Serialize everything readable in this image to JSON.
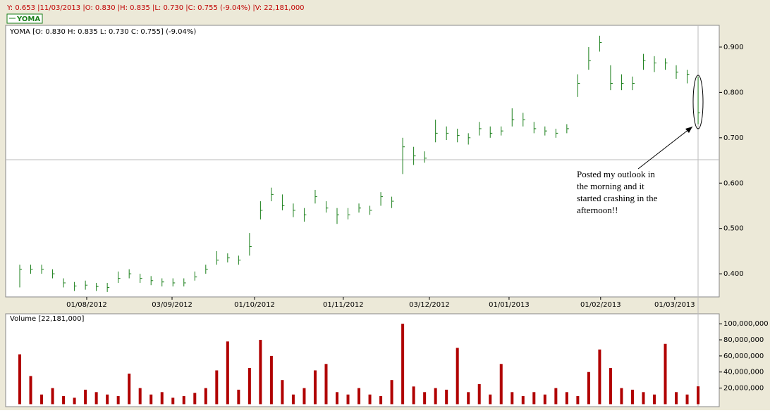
{
  "chart_data": [
    {
      "type": "ohlc",
      "status_line": "Y: 0.653 |11/03/2013 |O: 0.830 |H: 0.835 |L: 0.730 |C: 0.755 (-9.04%) |V: 22,181,000",
      "legend": "YOMA",
      "title": "YOMA [O: 0.830  H: 0.835  L: 0.730  C: 0.755] (-9.04%)",
      "annotation": [
        "Posted my outlook in",
        "the morning and it",
        "started crashing in the",
        "afternoon!!"
      ],
      "color": "#1a7f1a",
      "xlim": [
        -1.29,
        63.93
      ],
      "xticks": [
        {
          "value": 6.12,
          "label": "01/08/2012"
        },
        {
          "value": 13.92,
          "label": "03/09/2012"
        },
        {
          "value": 21.46,
          "label": "01/10/2012"
        },
        {
          "value": 29.57,
          "label": "01/11/2012"
        },
        {
          "value": 37.44,
          "label": "03/12/2012"
        },
        {
          "value": 44.72,
          "label": "01/01/2013"
        },
        {
          "value": 53.09,
          "label": "01/02/2013"
        },
        {
          "value": 59.86,
          "label": "01/03/2013"
        }
      ],
      "ylim": [
        0.349,
        0.948
      ],
      "yticks": [
        {
          "value": 0.4,
          "label": "0.400"
        },
        {
          "value": 0.5,
          "label": "0.500"
        },
        {
          "value": 0.6,
          "label": "0.600"
        },
        {
          "value": 0.7,
          "label": "0.700"
        },
        {
          "value": 0.8,
          "label": "0.800"
        },
        {
          "value": 0.9,
          "label": "0.900"
        }
      ],
      "close": [
        0.41,
        0.41,
        0.41,
        0.4,
        0.38,
        0.373,
        0.375,
        0.372,
        0.37,
        0.39,
        0.4,
        0.39,
        0.385,
        0.382,
        0.38,
        0.38,
        0.393,
        0.41,
        0.43,
        0.435,
        0.43,
        0.46,
        0.54,
        0.575,
        0.55,
        0.54,
        0.53,
        0.57,
        0.545,
        0.53,
        0.53,
        0.545,
        0.54,
        0.57,
        0.56,
        0.68,
        0.66,
        0.655,
        0.71,
        0.71,
        0.705,
        0.7,
        0.72,
        0.71,
        0.715,
        0.74,
        0.74,
        0.72,
        0.715,
        0.71,
        0.72,
        0.82,
        0.87,
        0.91,
        0.82,
        0.82,
        0.82,
        0.87,
        0.865,
        0.865,
        0.845,
        0.84,
        0.755
      ],
      "high": [
        0.42,
        0.42,
        0.42,
        0.41,
        0.39,
        0.382,
        0.385,
        0.38,
        0.38,
        0.405,
        0.41,
        0.4,
        0.395,
        0.39,
        0.39,
        0.39,
        0.405,
        0.42,
        0.45,
        0.445,
        0.44,
        0.49,
        0.56,
        0.59,
        0.575,
        0.555,
        0.545,
        0.585,
        0.56,
        0.545,
        0.545,
        0.555,
        0.55,
        0.58,
        0.57,
        0.7,
        0.68,
        0.67,
        0.74,
        0.725,
        0.72,
        0.71,
        0.735,
        0.725,
        0.725,
        0.765,
        0.755,
        0.735,
        0.725,
        0.72,
        0.73,
        0.84,
        0.9,
        0.925,
        0.86,
        0.84,
        0.835,
        0.885,
        0.88,
        0.875,
        0.86,
        0.85,
        0.835
      ],
      "low": [
        0.37,
        0.4,
        0.4,
        0.39,
        0.37,
        0.362,
        0.365,
        0.362,
        0.36,
        0.38,
        0.39,
        0.38,
        0.375,
        0.372,
        0.372,
        0.372,
        0.385,
        0.4,
        0.42,
        0.425,
        0.42,
        0.44,
        0.52,
        0.56,
        0.54,
        0.525,
        0.515,
        0.555,
        0.535,
        0.51,
        0.52,
        0.535,
        0.53,
        0.55,
        0.545,
        0.62,
        0.64,
        0.645,
        0.69,
        0.695,
        0.69,
        0.685,
        0.705,
        0.7,
        0.705,
        0.725,
        0.725,
        0.71,
        0.705,
        0.7,
        0.71,
        0.79,
        0.85,
        0.89,
        0.805,
        0.805,
        0.805,
        0.85,
        0.845,
        0.85,
        0.83,
        0.82,
        0.73
      ]
    },
    {
      "type": "bar",
      "title": "Volume [22,181,000]",
      "color": "#b00000",
      "ylim": [
        -3100000,
        112400000
      ],
      "yticks": [
        {
          "value": 20000000,
          "label": "20,000,000"
        },
        {
          "value": 40000000,
          "label": "40,000,000"
        },
        {
          "value": 60000000,
          "label": "60,000,000"
        },
        {
          "value": 80000000,
          "label": "80,000,000"
        },
        {
          "value": 100000000,
          "label": "100,000,000"
        }
      ],
      "values": [
        62000000,
        35000000,
        12000000,
        20000000,
        10000000,
        8000000,
        18000000,
        15000000,
        12000000,
        10000000,
        38000000,
        20000000,
        12000000,
        15000000,
        8000000,
        10000000,
        14000000,
        20000000,
        42000000,
        78000000,
        18000000,
        45000000,
        80000000,
        60000000,
        30000000,
        12000000,
        20000000,
        42000000,
        50000000,
        15000000,
        12000000,
        20000000,
        12000000,
        10000000,
        30000000,
        100000000,
        22000000,
        15000000,
        20000000,
        18000000,
        70000000,
        15000000,
        25000000,
        12000000,
        50000000,
        15000000,
        10000000,
        15000000,
        12000000,
        20000000,
        15000000,
        10000000,
        40000000,
        68000000,
        45000000,
        20000000,
        18000000,
        15000000,
        12000000,
        75000000,
        15000000,
        12000000,
        22181000
      ]
    }
  ]
}
